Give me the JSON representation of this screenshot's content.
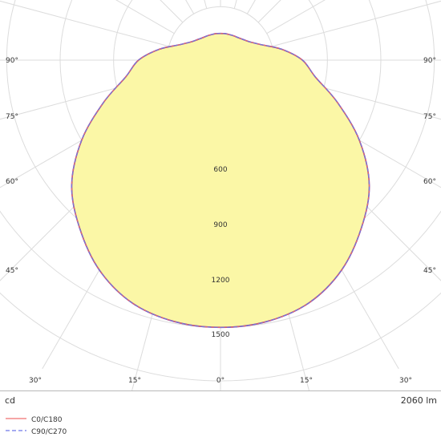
{
  "chart_data": {
    "type": "polar",
    "unit_label": "cd",
    "flux_label": "2060 lm",
    "radial_max": 1800,
    "radial_rings": [
      300,
      600,
      900,
      1200,
      1500,
      1800
    ],
    "radial_tick_labels": [
      "600",
      "900",
      "1200",
      "1500"
    ],
    "angle_labels": {
      "sides": [
        "90°",
        "75°",
        "60°",
        "45°"
      ],
      "bottom": [
        "30°",
        "15°",
        "0°",
        "15°",
        "30°"
      ]
    },
    "grid": true,
    "legend_position": "bottom-left",
    "fill_color": "#fbf7a6",
    "outline_color": "#7a2b8a",
    "series": [
      {
        "name": "C0/C180",
        "color": "#f07070",
        "dash": "solid",
        "points": [
          [
            0,
            1500
          ],
          [
            10,
            1490
          ],
          [
            20,
            1450
          ],
          [
            30,
            1360
          ],
          [
            40,
            1230
          ],
          [
            50,
            1090
          ],
          [
            60,
            900
          ],
          [
            70,
            700
          ],
          [
            80,
            540
          ],
          [
            90,
            460
          ],
          [
            100,
            350
          ],
          [
            110,
            250
          ],
          [
            120,
            200
          ],
          [
            130,
            176
          ],
          [
            140,
            162
          ],
          [
            150,
            156
          ],
          [
            160,
            152
          ],
          [
            170,
            151
          ],
          [
            180,
            150
          ]
        ]
      },
      {
        "name": "C90/C270",
        "color": "#6f77e6",
        "dash": "dashed",
        "points": [
          [
            0,
            1500
          ],
          [
            10,
            1490
          ],
          [
            20,
            1450
          ],
          [
            30,
            1360
          ],
          [
            40,
            1230
          ],
          [
            50,
            1090
          ],
          [
            60,
            900
          ],
          [
            70,
            700
          ],
          [
            80,
            540
          ],
          [
            90,
            460
          ],
          [
            100,
            350
          ],
          [
            110,
            250
          ],
          [
            120,
            200
          ],
          [
            130,
            176
          ],
          [
            140,
            162
          ],
          [
            150,
            156
          ],
          [
            160,
            152
          ],
          [
            170,
            151
          ],
          [
            180,
            150
          ]
        ]
      }
    ]
  }
}
